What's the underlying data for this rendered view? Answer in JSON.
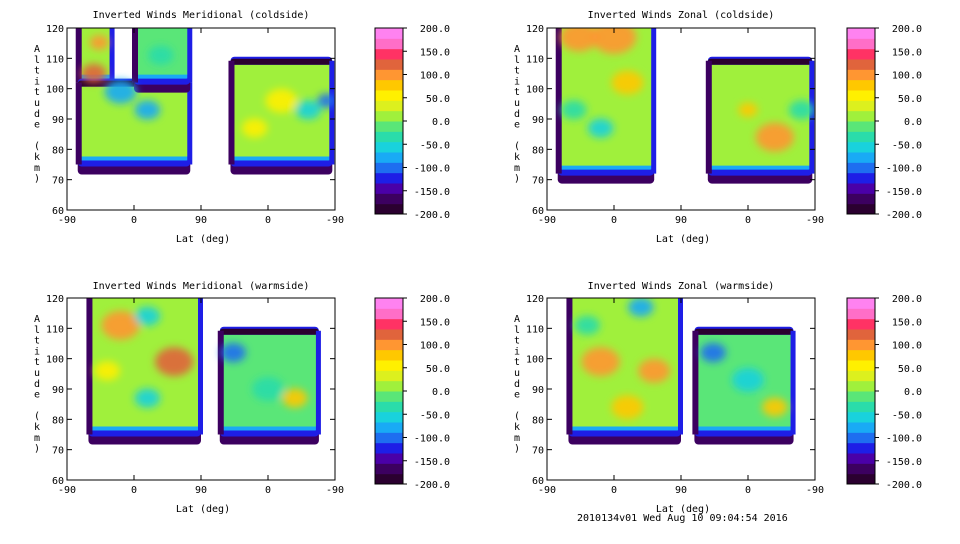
{
  "footer": "2010134v01 Wed Aug 10 09:04:54 2016",
  "chart_data": [
    {
      "type": "heatmap",
      "title": "Inverted Winds Meridional (coldside)",
      "xlabel": "Lat (deg)",
      "ylabel": "Altitude (km)",
      "x_ticks": [
        "-90",
        "0",
        "90",
        "0",
        "-90"
      ],
      "y_ticks": [
        "60",
        "70",
        "80",
        "90",
        "100",
        "110",
        "120"
      ],
      "ylim": [
        60,
        120
      ],
      "colorbar_ticks": [
        "200.0",
        "150.0",
        "100.0",
        "50.0",
        "0.0",
        "-50.0",
        "-100.0",
        "-150.0",
        "-200.0"
      ],
      "clim": [
        -200,
        200
      ]
    },
    {
      "type": "heatmap",
      "title": "Inverted Winds Zonal (coldside)",
      "xlabel": "Lat (deg)",
      "ylabel": "Altitude (km)",
      "x_ticks": [
        "-90",
        "0",
        "90",
        "0",
        "-90"
      ],
      "y_ticks": [
        "60",
        "70",
        "80",
        "90",
        "100",
        "110",
        "120"
      ],
      "ylim": [
        60,
        120
      ],
      "colorbar_ticks": [
        "200.0",
        "150.0",
        "100.0",
        "50.0",
        "0.0",
        "-50.0",
        "-100.0",
        "-150.0",
        "-200.0"
      ],
      "clim": [
        -200,
        200
      ]
    },
    {
      "type": "heatmap",
      "title": "Inverted Winds Meridional (warmside)",
      "xlabel": "Lat (deg)",
      "ylabel": "Altitude (km)",
      "x_ticks": [
        "-90",
        "0",
        "90",
        "0",
        "-90"
      ],
      "y_ticks": [
        "60",
        "70",
        "80",
        "90",
        "100",
        "110",
        "120"
      ],
      "ylim": [
        60,
        120
      ],
      "colorbar_ticks": [
        "200.0",
        "150.0",
        "100.0",
        "50.0",
        "0.0",
        "-50.0",
        "-100.0",
        "-150.0",
        "-200.0"
      ],
      "clim": [
        -200,
        200
      ]
    },
    {
      "type": "heatmap",
      "title": "Inverted Winds Zonal (warmside)",
      "xlabel": "Lat (deg)",
      "ylabel": "Altitude (km)",
      "x_ticks": [
        "-90",
        "0",
        "90",
        "0",
        "-90"
      ],
      "y_ticks": [
        "60",
        "70",
        "80",
        "90",
        "100",
        "110",
        "120"
      ],
      "ylim": [
        60,
        120
      ],
      "colorbar_ticks": [
        "200.0",
        "150.0",
        "100.0",
        "50.0",
        "0.0",
        "-50.0",
        "-100.0",
        "-150.0",
        "-200.0"
      ],
      "clim": [
        -200,
        200
      ]
    }
  ],
  "colorscale": [
    "#2b0030",
    "#3c0060",
    "#4a00a8",
    "#1e1ee6",
    "#1e6ef0",
    "#19aaf5",
    "#19d2dc",
    "#2adcaa",
    "#5ae678",
    "#a0f03c",
    "#dcf01e",
    "#fff000",
    "#ffc800",
    "#ff9632",
    "#e0643c",
    "#ff3264",
    "#ff6ec8",
    "#ff82f0"
  ]
}
